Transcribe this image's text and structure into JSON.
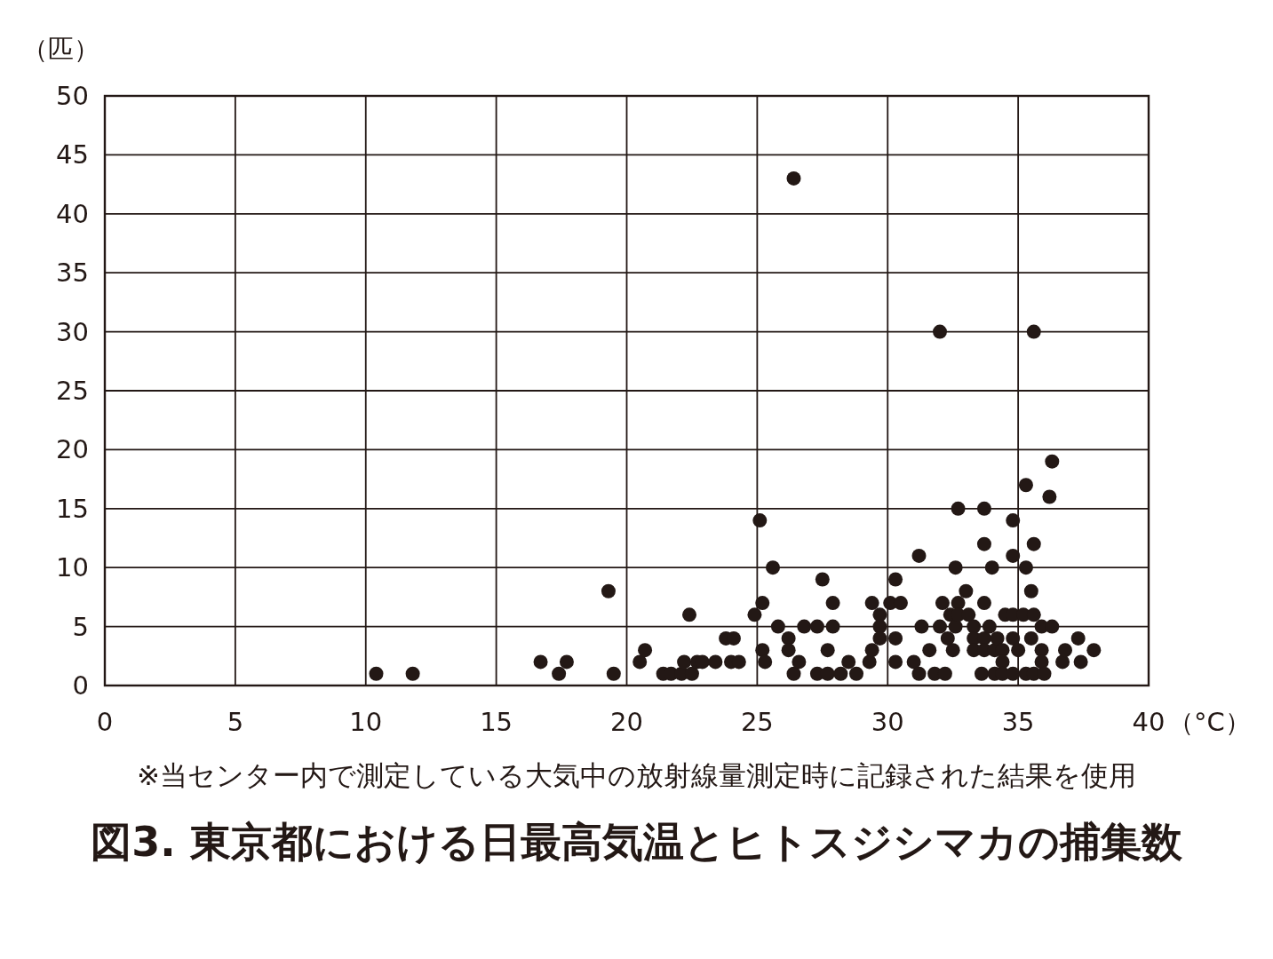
{
  "chart_data": {
    "type": "scatter",
    "title": "図3. 東京都における日最高気温とヒトスジシマカの捕集数",
    "xlabel": "（°C）",
    "ylabel": "（匹）",
    "annotations": [
      "※当センター内で測定している大気中の放射線量測定時に記録された結果を使用"
    ],
    "x": [
      10.4,
      11.8,
      16.7,
      17.4,
      17.7,
      19.3,
      19.5,
      20.5,
      20.7,
      21.4,
      21.7,
      22.1,
      22.2,
      22.4,
      22.5,
      22.7,
      22.9,
      23.4,
      23.8,
      24.0,
      24.1,
      24.3,
      24.9,
      25.1,
      25.2,
      25.2,
      25.3,
      25.6,
      25.8,
      26.2,
      26.2,
      26.4,
      26.4,
      26.6,
      26.8,
      27.3,
      27.3,
      27.5,
      27.7,
      27.7,
      27.9,
      27.9,
      28.2,
      28.5,
      28.8,
      29.3,
      29.4,
      29.4,
      29.7,
      29.7,
      29.7,
      30.1,
      30.3,
      30.3,
      30.3,
      30.5,
      31.0,
      31.2,
      31.2,
      31.3,
      31.6,
      31.8,
      32.0,
      32.0,
      32.1,
      32.2,
      32.3,
      32.4,
      32.5,
      32.6,
      32.6,
      32.7,
      32.7,
      32.7,
      33.0,
      33.1,
      33.3,
      33.3,
      33.3,
      33.6,
      33.7,
      33.7,
      33.7,
      33.7,
      33.7,
      33.9,
      34.0,
      34.1,
      34.1,
      34.2,
      34.4,
      34.4,
      34.4,
      34.5,
      34.8,
      34.8,
      34.8,
      34.8,
      34.8,
      35.0,
      35.2,
      35.3,
      35.3,
      35.3,
      35.5,
      35.5,
      35.6,
      35.6,
      35.6,
      35.6,
      35.9,
      35.9,
      35.9,
      36.0,
      36.2,
      36.3,
      36.3,
      36.7,
      36.8,
      37.3,
      37.4,
      37.9
    ],
    "values": [
      1,
      1,
      2,
      1,
      2,
      8,
      1,
      2,
      3,
      1,
      1,
      1,
      2,
      6,
      1,
      2,
      2,
      2,
      4,
      2,
      4,
      2,
      6,
      14,
      7,
      3,
      2,
      10,
      5,
      4,
      3,
      43,
      1,
      2,
      5,
      5,
      1,
      9,
      3,
      1,
      7,
      5,
      1,
      2,
      1,
      2,
      3,
      7,
      6,
      5,
      4,
      7,
      9,
      4,
      2,
      7,
      2,
      11,
      1,
      5,
      3,
      1,
      5,
      30,
      7,
      1,
      4,
      6,
      3,
      10,
      5,
      15,
      7,
      6,
      8,
      6,
      5,
      4,
      3,
      1,
      15,
      12,
      7,
      4,
      3,
      5,
      10,
      1,
      3,
      4,
      3,
      2,
      1,
      6,
      14,
      11,
      6,
      4,
      1,
      3,
      6,
      17,
      10,
      1,
      8,
      4,
      30,
      12,
      6,
      1,
      5,
      3,
      2,
      1,
      16,
      19,
      5,
      2,
      3,
      4,
      2,
      3
    ],
    "color": "#231815",
    "marker": "circle",
    "grid": true,
    "xlim": [
      0,
      40
    ],
    "xticks": [
      0,
      5,
      10,
      15,
      20,
      25,
      30,
      35,
      40
    ],
    "ylim": [
      0,
      50
    ],
    "yticks": [
      0,
      5,
      10,
      15,
      20,
      25,
      30,
      35,
      40,
      45,
      50
    ]
  }
}
